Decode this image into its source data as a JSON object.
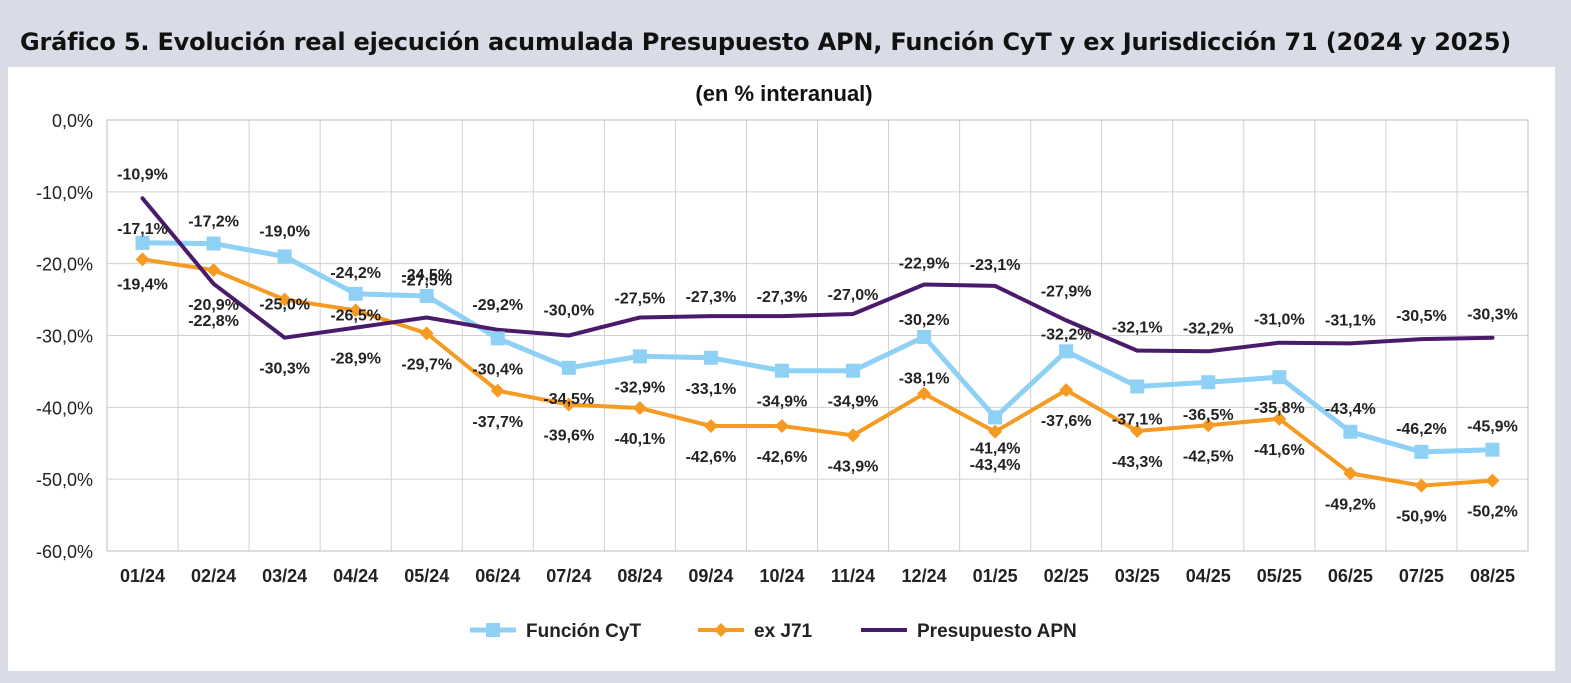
{
  "heading": "Gráfico 5. Evolución real ejecución acumulada Presupuesto APN, Función CyT y ex Jurisdicción 71 (2024 y 2025)",
  "colors": {
    "cyt": "#8fd0f5",
    "j71": "#f59a23",
    "apn": "#4b1b6b",
    "grid": "#d0d0d0",
    "frame_bg": "#d9dce6"
  },
  "chart_data": {
    "type": "line",
    "subtitle": "(en % interanual)",
    "categories": [
      "01/24",
      "02/24",
      "03/24",
      "04/24",
      "05/24",
      "06/24",
      "07/24",
      "08/24",
      "09/24",
      "10/24",
      "11/24",
      "12/24",
      "01/25",
      "02/25",
      "03/25",
      "04/25",
      "05/25",
      "06/25",
      "07/25",
      "08/25"
    ],
    "ylim": [
      -60,
      0
    ],
    "yticks": [
      0,
      -10,
      -20,
      -30,
      -40,
      -50,
      -60
    ],
    "ytick_labels": [
      "0,0%",
      "-10,0%",
      "-20,0%",
      "-30,0%",
      "-40,0%",
      "-50,0%",
      "-60,0%"
    ],
    "grid": true,
    "legend_position": "bottom",
    "series": [
      {
        "name": "Función CyT",
        "marker": "square",
        "color": "#8fd0f5",
        "values": [
          -17.1,
          -17.2,
          -19.0,
          -24.2,
          -24.5,
          -30.4,
          -34.5,
          -32.9,
          -33.1,
          -34.9,
          -34.9,
          -30.2,
          -41.4,
          -32.2,
          -37.1,
          -36.5,
          -35.8,
          -43.4,
          -46.2,
          -45.9
        ],
        "labels": [
          "-17,1%",
          "-17,2%",
          "-19,0%",
          "-24,2%",
          "-24,5%",
          "-30,4%",
          "-34,5%",
          "-32,9%",
          "-33,1%",
          "-34,9%",
          "-34,9%",
          "-30,2%",
          "-41,4%",
          "-32,2%",
          "-37,1%",
          "-36,5%",
          "-35,8%",
          "-43,4%",
          "-46,2%",
          "-45,9%"
        ]
      },
      {
        "name": "ex J71",
        "marker": "diamond",
        "color": "#f59a23",
        "values": [
          -19.4,
          -20.9,
          -25.0,
          -26.5,
          -29.7,
          -37.7,
          -39.6,
          -40.1,
          -42.6,
          -42.6,
          -43.9,
          -38.1,
          -43.4,
          -37.6,
          -43.3,
          -42.5,
          -41.6,
          -49.2,
          -50.9,
          -50.2
        ],
        "labels": [
          "-19,4%",
          "-20,9%",
          "-25,0%",
          "-26,5%",
          "-29,7%",
          "-37,7%",
          "-39,6%",
          "-40,1%",
          "-42,6%",
          "-42,6%",
          "-43,9%",
          "-38,1%",
          "-43,4%",
          "-37,6%",
          "-43,3%",
          "-42,5%",
          "-41,6%",
          "-49,2%",
          "-50,9%",
          "-50,2%"
        ]
      },
      {
        "name": "Presupuesto APN",
        "marker": "none",
        "color": "#4b1b6b",
        "values": [
          -10.9,
          -22.8,
          -30.3,
          -28.9,
          -27.5,
          -29.2,
          -30.0,
          -27.5,
          -27.3,
          -27.3,
          -27.0,
          -22.9,
          -23.1,
          -27.9,
          -32.1,
          -32.2,
          -31.0,
          -31.1,
          -30.5,
          -30.3
        ],
        "labels": [
          "-10,9%",
          "-22,8%",
          "-30,3%",
          "-28,9%",
          "-27,5%",
          "-29,2%",
          "-30,0%",
          "-27,5%",
          "-27,3%",
          "-27,3%",
          "-27,0%",
          "-22,9%",
          "-23,1%",
          "-27,9%",
          "-32,1%",
          "-32,2%",
          "-31,0%",
          "-31,1%",
          "-30,5%",
          "-30,3%"
        ]
      }
    ]
  }
}
